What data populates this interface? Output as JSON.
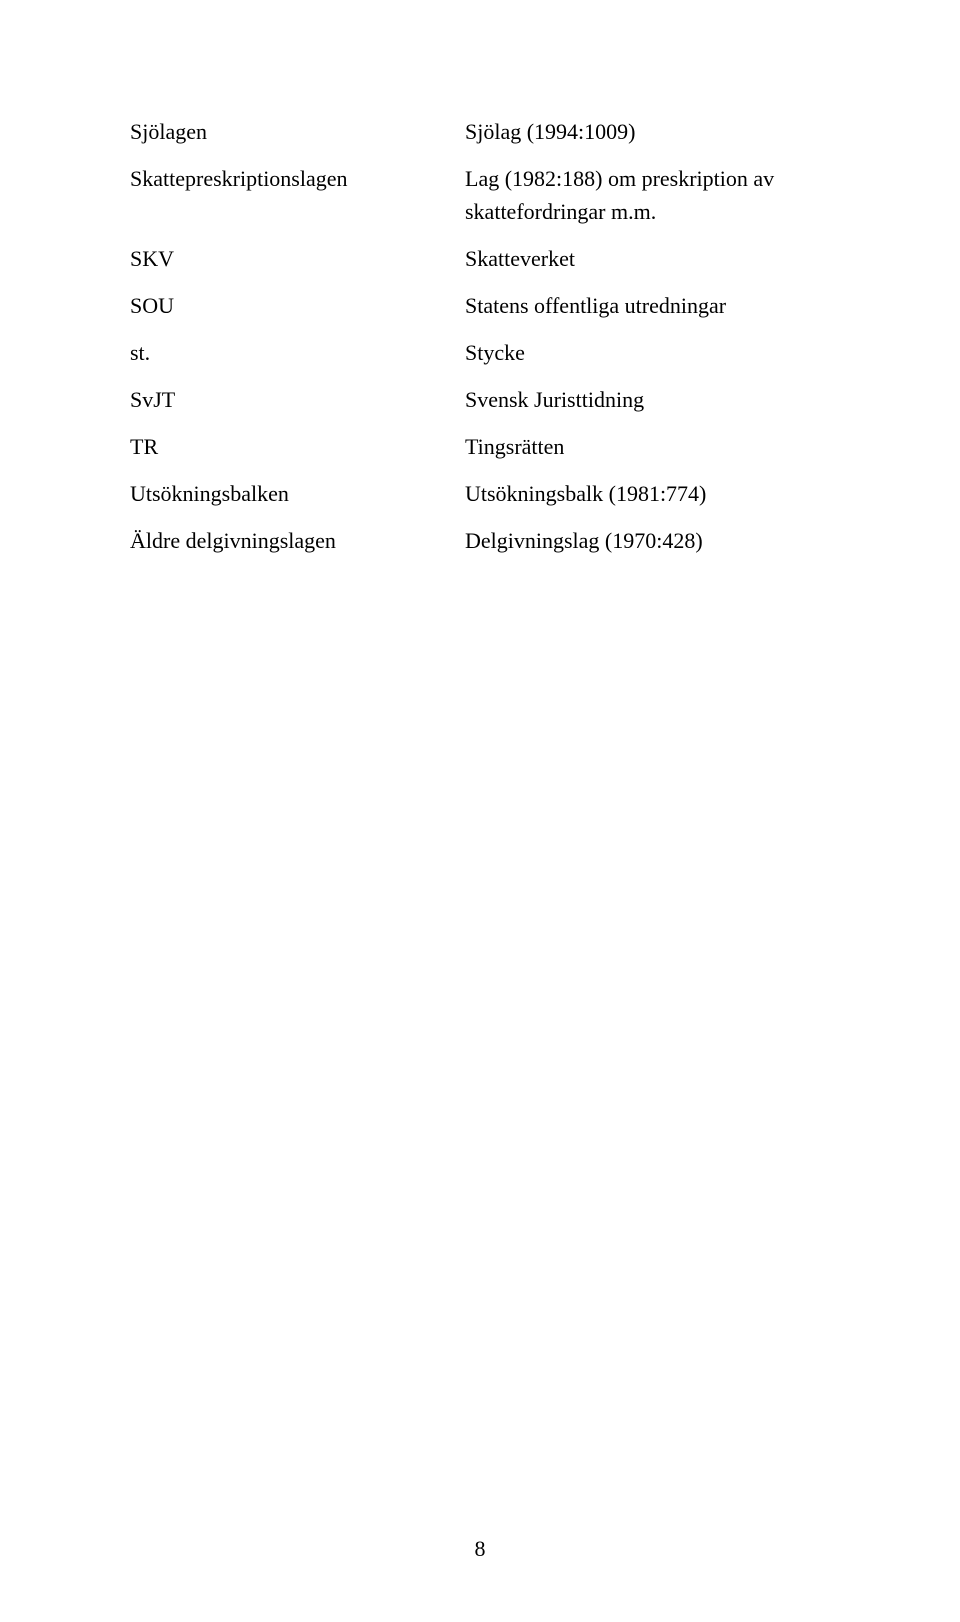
{
  "rows": [
    {
      "left": "Sjölagen",
      "right": "Sjölag (1994:1009)"
    },
    {
      "left": "Skattepreskriptionslagen",
      "right": "Lag (1982:188) om preskription av skattefordringar m.m."
    },
    {
      "left": "SKV",
      "right": "Skatteverket"
    },
    {
      "left": "SOU",
      "right": "Statens offentliga utredningar"
    },
    {
      "left": "st.",
      "right": "Stycke"
    },
    {
      "left": "SvJT",
      "right": "Svensk Juristtidning"
    },
    {
      "left": "TR",
      "right": "Tingsrätten"
    },
    {
      "left": "Utsökningsbalken",
      "right": "Utsökningsbalk (1981:774)"
    },
    {
      "left": "Äldre delgivningslagen",
      "right": "Delgivningslag (1970:428)"
    }
  ],
  "page_number": "8"
}
